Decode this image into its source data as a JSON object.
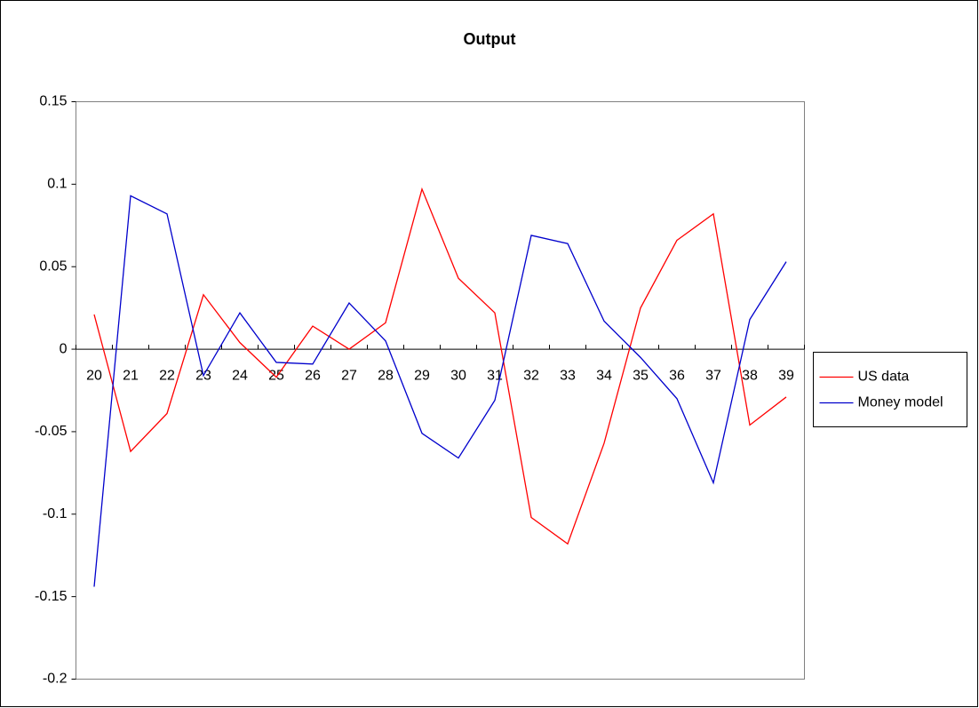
{
  "chart_data": {
    "type": "line",
    "title": "Output",
    "categories": [
      "20",
      "21",
      "22",
      "23",
      "24",
      "25",
      "26",
      "27",
      "28",
      "29",
      "30",
      "31",
      "32",
      "33",
      "34",
      "35",
      "36",
      "37",
      "38",
      "39"
    ],
    "series": [
      {
        "name": "US data",
        "color": "#ff0000",
        "values": [
          0.021,
          -0.062,
          -0.039,
          0.033,
          0.004,
          -0.017,
          0.014,
          0.0,
          0.016,
          0.097,
          0.043,
          0.022,
          -0.102,
          -0.118,
          -0.057,
          0.025,
          0.066,
          0.082,
          -0.046,
          -0.029
        ]
      },
      {
        "name": "Money model",
        "color": "#0000cc",
        "values": [
          -0.144,
          0.093,
          0.082,
          -0.016,
          0.022,
          -0.008,
          -0.009,
          0.028,
          0.005,
          -0.051,
          -0.066,
          -0.031,
          0.069,
          0.064,
          0.017,
          -0.005,
          -0.03,
          -0.081,
          0.018,
          0.053
        ]
      }
    ],
    "ylim": [
      -0.2,
      0.15
    ],
    "yticks": [
      -0.2,
      -0.15,
      -0.1,
      -0.05,
      0,
      0.05,
      0.1,
      0.15
    ],
    "legend": "right"
  }
}
